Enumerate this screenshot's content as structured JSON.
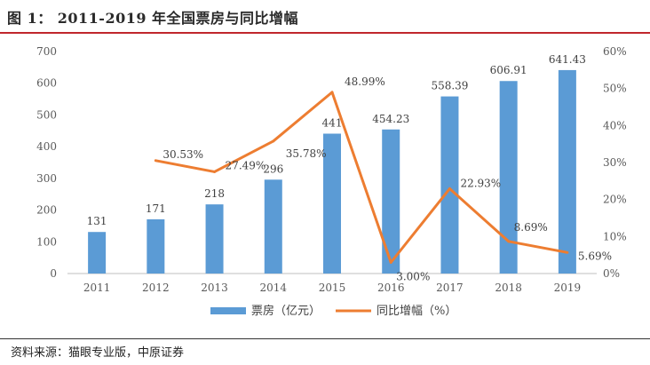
{
  "figure": {
    "title": "图 1：  2011-2019 年全国票房与同比增幅",
    "source": "资料来源：猫眼专业版，中原证券"
  },
  "colors": {
    "bar": "#5b9bd5",
    "line": "#ed7d31",
    "title_rule": "#c0272d"
  },
  "chart_data": {
    "type": "bar",
    "categories": [
      "2011",
      "2012",
      "2013",
      "2014",
      "2015",
      "2016",
      "2017",
      "2018",
      "2019"
    ],
    "series": [
      {
        "name": "票房（亿元）",
        "type": "bar",
        "axis": "left",
        "values": [
          131,
          171,
          218,
          296,
          441,
          454.23,
          558.39,
          606.91,
          641.43
        ],
        "labels": [
          "131",
          "171",
          "218",
          "296",
          "441",
          "454.23",
          "558.39",
          "606.91",
          "641.43"
        ]
      },
      {
        "name": "同比增幅（%）",
        "type": "line",
        "axis": "right",
        "values": [
          null,
          30.53,
          27.49,
          35.78,
          48.99,
          3.0,
          22.93,
          8.69,
          5.69
        ],
        "labels": [
          "",
          "30.53%",
          "27.49%",
          "35.78%",
          "48.99%",
          "3.00%",
          "22.93%",
          "8.69%",
          "5.69%"
        ]
      }
    ],
    "y_left": {
      "min": 0,
      "max": 700,
      "step": 100,
      "ticks": [
        "0",
        "100",
        "200",
        "300",
        "400",
        "500",
        "600",
        "700"
      ]
    },
    "y_right": {
      "min": 0,
      "max": 60,
      "step": 10,
      "ticks": [
        "0%",
        "10%",
        "20%",
        "30%",
        "40%",
        "50%",
        "60%"
      ]
    },
    "legend_position": "bottom-center",
    "grid": false
  }
}
